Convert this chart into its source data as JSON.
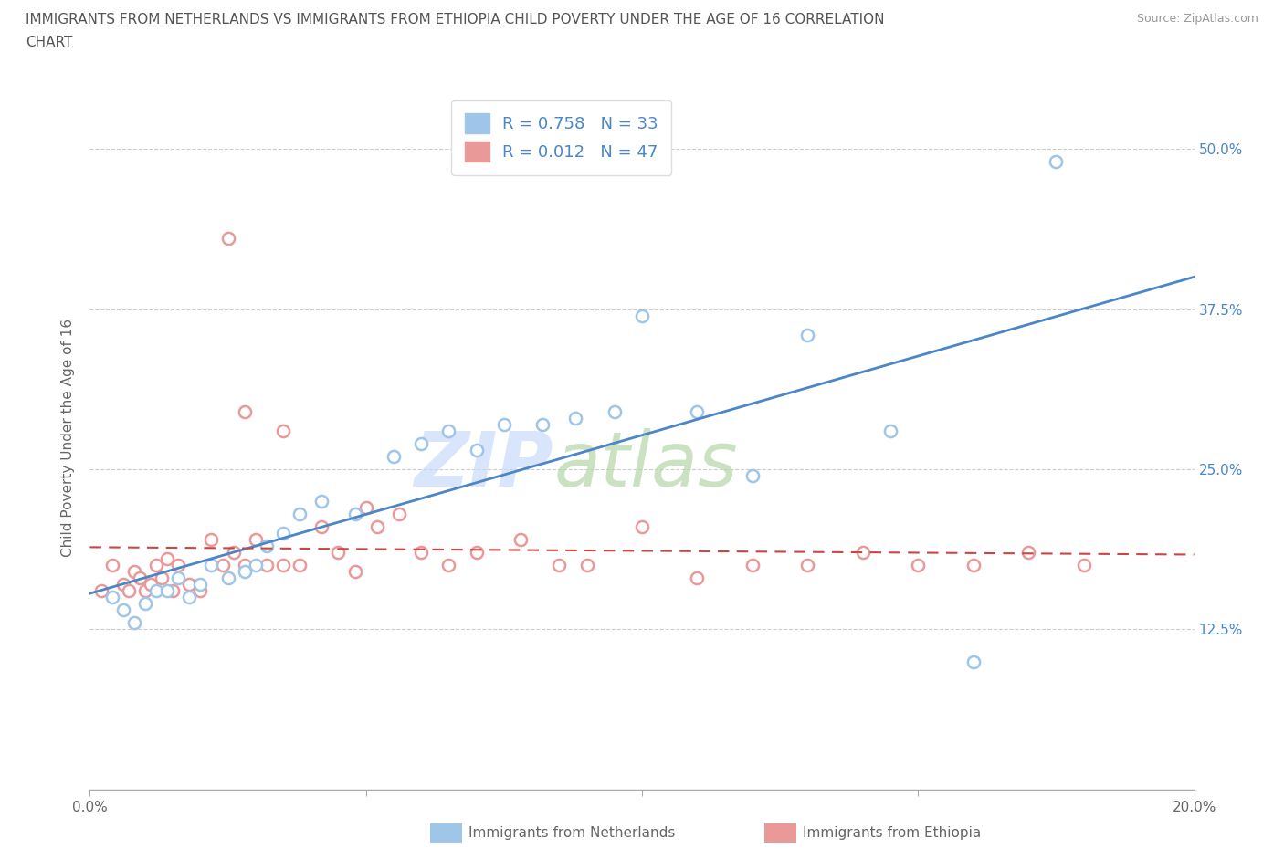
{
  "title_line1": "IMMIGRANTS FROM NETHERLANDS VS IMMIGRANTS FROM ETHIOPIA CHILD POVERTY UNDER THE AGE OF 16 CORRELATION",
  "title_line2": "CHART",
  "source": "Source: ZipAtlas.com",
  "ylabel": "Child Poverty Under the Age of 16",
  "legend_r1": "R = 0.758   N = 33",
  "legend_r2": "R = 0.012   N = 47",
  "xlim": [
    0.0,
    0.2
  ],
  "ylim": [
    0.0,
    0.55
  ],
  "blue_scatter_color": "#9fc5e8",
  "pink_scatter_color": "#ea9999",
  "blue_line_color": "#4a86c8",
  "pink_line_color": "#cc4444",
  "tick_label_color": "#4a86c8",
  "axis_label_color": "#666666",
  "title_color": "#555555",
  "source_color": "#999999",
  "nl_x": [
    0.004,
    0.006,
    0.008,
    0.01,
    0.012,
    0.014,
    0.016,
    0.018,
    0.02,
    0.022,
    0.025,
    0.028,
    0.03,
    0.032,
    0.035,
    0.038,
    0.042,
    0.048,
    0.055,
    0.06,
    0.065,
    0.07,
    0.075,
    0.082,
    0.088,
    0.095,
    0.1,
    0.11,
    0.12,
    0.13,
    0.145,
    0.16,
    0.175
  ],
  "nl_y": [
    0.15,
    0.14,
    0.13,
    0.145,
    0.155,
    0.155,
    0.165,
    0.15,
    0.16,
    0.175,
    0.165,
    0.17,
    0.175,
    0.19,
    0.2,
    0.215,
    0.225,
    0.215,
    0.26,
    0.27,
    0.28,
    0.265,
    0.285,
    0.285,
    0.29,
    0.295,
    0.37,
    0.295,
    0.245,
    0.355,
    0.28,
    0.1,
    0.49
  ],
  "eth_x": [
    0.002,
    0.004,
    0.006,
    0.007,
    0.008,
    0.009,
    0.01,
    0.011,
    0.012,
    0.013,
    0.014,
    0.015,
    0.016,
    0.018,
    0.02,
    0.022,
    0.024,
    0.026,
    0.028,
    0.03,
    0.032,
    0.035,
    0.038,
    0.042,
    0.045,
    0.048,
    0.052,
    0.056,
    0.06,
    0.065,
    0.07,
    0.078,
    0.085,
    0.09,
    0.1,
    0.11,
    0.12,
    0.13,
    0.14,
    0.15,
    0.16,
    0.17,
    0.18,
    0.025,
    0.028,
    0.035,
    0.05
  ],
  "eth_y": [
    0.155,
    0.175,
    0.16,
    0.155,
    0.17,
    0.165,
    0.155,
    0.16,
    0.175,
    0.165,
    0.18,
    0.155,
    0.175,
    0.16,
    0.155,
    0.195,
    0.175,
    0.185,
    0.175,
    0.195,
    0.175,
    0.175,
    0.175,
    0.205,
    0.185,
    0.17,
    0.205,
    0.215,
    0.185,
    0.175,
    0.185,
    0.195,
    0.175,
    0.175,
    0.205,
    0.165,
    0.175,
    0.175,
    0.185,
    0.175,
    0.175,
    0.185,
    0.175,
    0.43,
    0.295,
    0.28,
    0.22
  ],
  "bottom_label1": "Immigrants from Netherlands",
  "bottom_label2": "Immigrants from Ethiopia"
}
